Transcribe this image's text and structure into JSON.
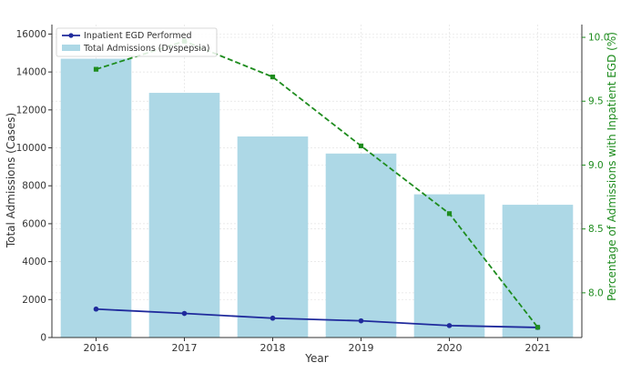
{
  "chart_data": {
    "type": "bar",
    "categories": [
      "2016",
      "2017",
      "2018",
      "2019",
      "2020",
      "2021"
    ],
    "xlabel": "Year",
    "ylabel": "Total Admissions (Cases)",
    "y2label": "Percentage of Admissions with Inpatient EGD (%)",
    "ylim": [
      0,
      16500
    ],
    "y2lim": [
      7.65,
      10.1
    ],
    "yticks": [
      0,
      2000,
      4000,
      6000,
      8000,
      10000,
      12000,
      14000,
      16000
    ],
    "yticklabels": [
      "0",
      "2000",
      "4000",
      "6000",
      "8000",
      "10000",
      "12000",
      "14000",
      "16000"
    ],
    "y2ticks": [
      8.0,
      8.5,
      9.0,
      9.5,
      10.0
    ],
    "y2ticklabels": [
      "8.0",
      "8.5",
      "9.0",
      "9.5",
      "10.0"
    ],
    "grid": true,
    "legend": "top-left",
    "series": [
      {
        "name": "Total Admissions (Dyspepsia)",
        "kind": "bar",
        "axis": "left",
        "color": "#add8e6",
        "values": [
          14700,
          12900,
          10600,
          9700,
          7550,
          7000
        ]
      },
      {
        "name": "Inpatient EGD Performed",
        "kind": "line",
        "axis": "left",
        "color": "#1f2a9c",
        "values": [
          1500,
          1270,
          1020,
          880,
          630,
          530
        ]
      },
      {
        "name": "",
        "kind": "line-dashed",
        "axis": "right",
        "color": "#1e8c1e",
        "values": [
          9.75,
          9.97,
          9.69,
          9.15,
          8.62,
          7.73
        ]
      }
    ]
  }
}
